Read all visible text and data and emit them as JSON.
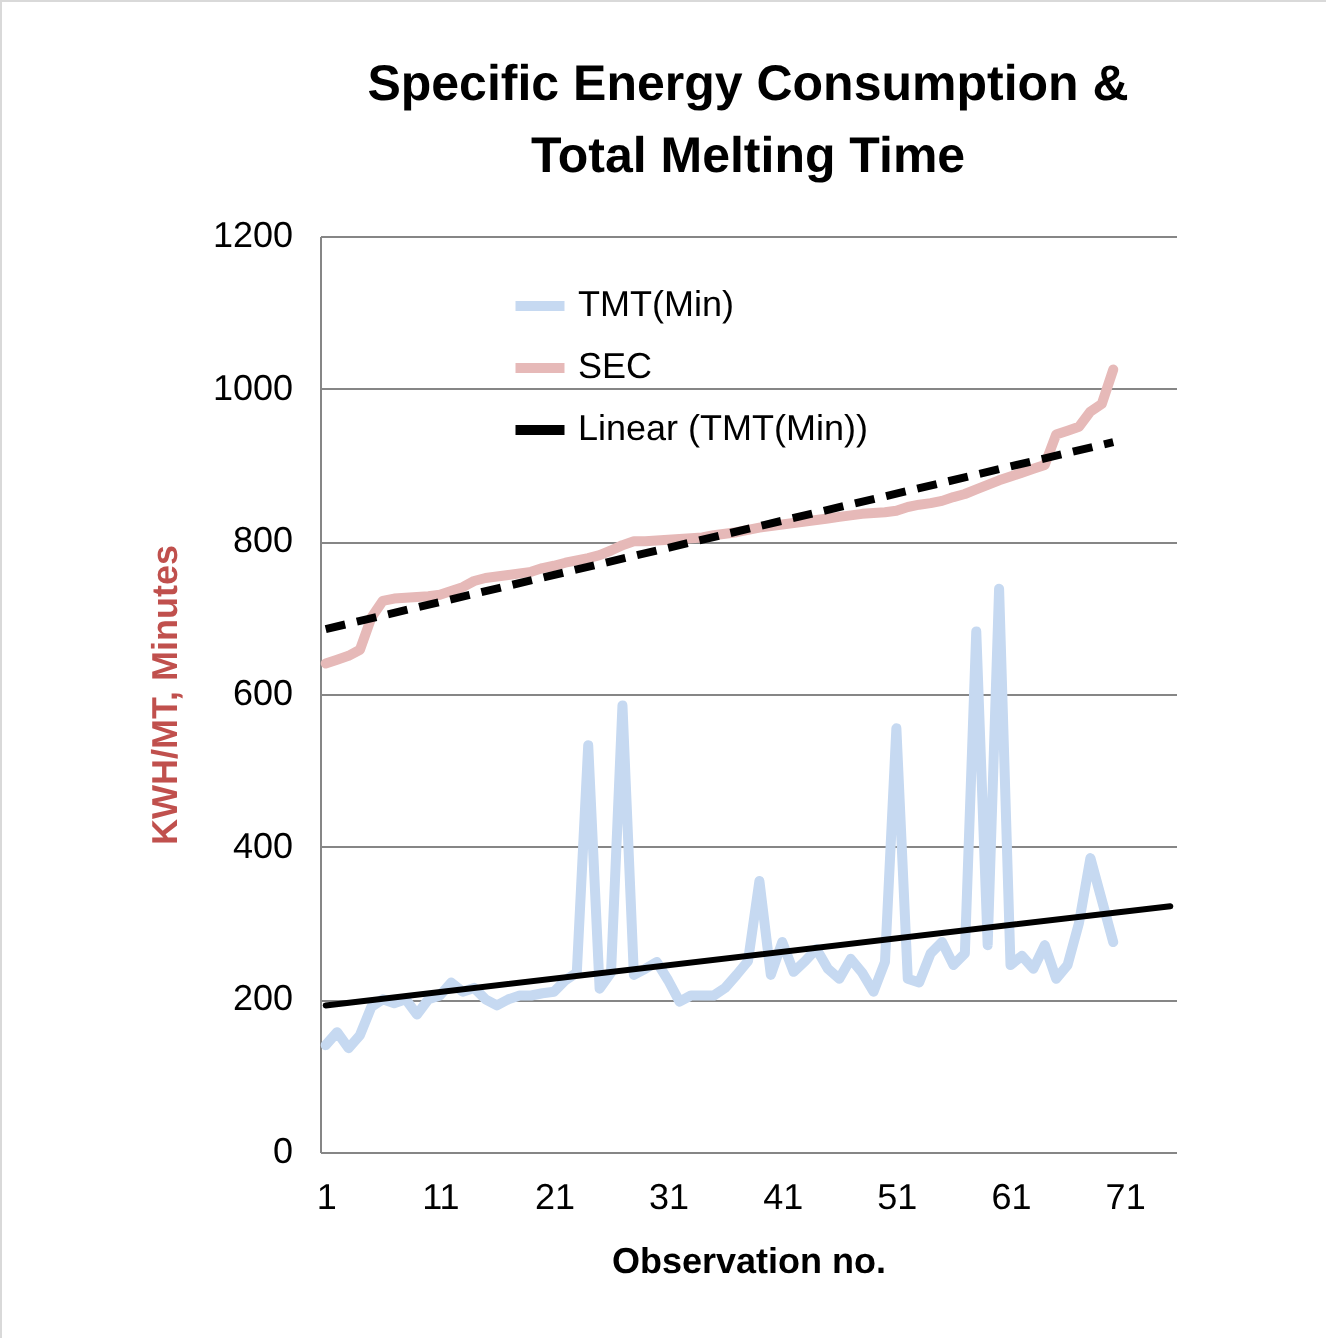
{
  "chart_data": {
    "type": "line",
    "title": "Specific Energy Consumption &\nTotal Melting Time",
    "xlabel": "Observation no.",
    "ylabel": "KWH/MT, Minutes",
    "x": [
      1,
      2,
      3,
      4,
      5,
      6,
      7,
      8,
      9,
      10,
      11,
      12,
      13,
      14,
      15,
      16,
      17,
      18,
      19,
      20,
      21,
      22,
      23,
      24,
      25,
      26,
      27,
      28,
      29,
      30,
      31,
      32,
      33,
      34,
      35,
      36,
      37,
      38,
      39,
      40,
      41,
      42,
      43,
      44,
      45,
      46,
      47,
      48,
      49,
      50,
      51,
      52,
      53,
      54,
      55,
      56,
      57,
      58,
      59,
      60,
      61,
      62,
      63,
      64,
      65,
      66,
      67,
      68,
      69,
      70
    ],
    "series": [
      {
        "name": "TMT(Min)",
        "color": "#c6d9f1",
        "values": [
          140,
          157,
          136,
          153,
          190,
          200,
          195,
          200,
          180,
          200,
          205,
          222,
          210,
          215,
          200,
          192,
          200,
          205,
          205,
          208,
          210,
          225,
          235,
          533,
          214,
          235,
          585,
          232,
          240,
          249,
          225,
          197,
          205,
          205,
          205,
          215,
          232,
          250,
          355,
          232,
          275,
          236,
          250,
          266,
          240,
          227,
          253,
          235,
          210,
          249,
          555,
          227,
          222,
          260,
          275,
          245,
          260,
          682,
          271,
          738,
          245,
          257,
          240,
          271,
          227,
          245,
          300,
          385,
          330,
          275
        ]
      },
      {
        "name": "SEC",
        "color": "#e6b9b8",
        "values": [
          640,
          645,
          650,
          658,
          700,
          722,
          725,
          726,
          727,
          728,
          730,
          735,
          740,
          748,
          752,
          754,
          756,
          758,
          760,
          765,
          768,
          772,
          775,
          778,
          782,
          788,
          795,
          800,
          800,
          801,
          802,
          803,
          804,
          805,
          808,
          810,
          812,
          815,
          818,
          820,
          822,
          824,
          826,
          828,
          830,
          832,
          834,
          836,
          837,
          838,
          840,
          845,
          848,
          850,
          853,
          858,
          862,
          868,
          874,
          880,
          885,
          890,
          895,
          900,
          940,
          945,
          950,
          970,
          980,
          1025
        ]
      },
      {
        "name": "Linear (TMT(Min))",
        "color": "#000000",
        "line_style": "solid",
        "x": [
          1,
          75
        ],
        "values": [
          192,
          322
        ]
      },
      {
        "color": "#000000",
        "line_style": "dashed",
        "x": [
          1,
          70
        ],
        "values": [
          685,
          930
        ]
      }
    ],
    "xlim": [
      0.5,
      75.5
    ],
    "xticks": [
      1,
      11,
      21,
      31,
      41,
      51,
      61,
      71
    ],
    "ylim": [
      0,
      1200
    ],
    "yticks": [
      0,
      200,
      400,
      600,
      800,
      1000,
      1200
    ],
    "grid": "y",
    "legend": "top",
    "marker": "none"
  }
}
